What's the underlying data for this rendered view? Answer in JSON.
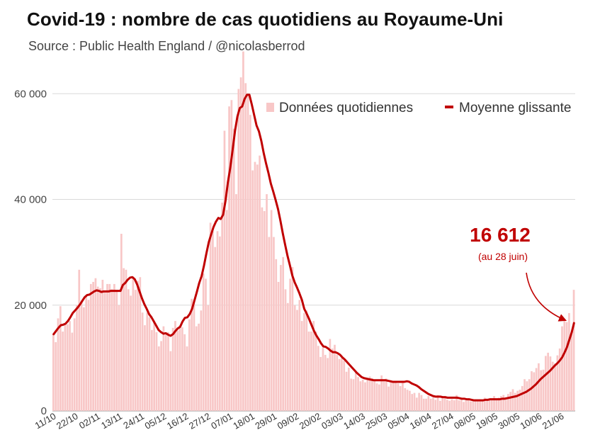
{
  "title": "Covid-19 : nombre de cas quotidiens au Royaume-Uni",
  "subtitle": "Source : Public Health England / @nicolasberrod",
  "colors": {
    "bars": "#f8c7c7",
    "line": "#c00000",
    "grid": "#d9d9d9",
    "annotation": "#c00000"
  },
  "chart_data": {
    "type": "bar",
    "ylim": [
      0,
      65000
    ],
    "y_ticks": [
      0,
      20000,
      40000,
      60000
    ],
    "y_tick_labels": [
      "0",
      "20 000",
      "40 000",
      "60 000"
    ],
    "x_tick_labels": [
      "11/10",
      "22/10",
      "02/11",
      "13/11",
      "24/11",
      "05/12",
      "16/12",
      "27/12",
      "07/01",
      "18/01",
      "29/01",
      "09/02",
      "20/02",
      "03/03",
      "14/03",
      "25/03",
      "05/04",
      "16/04",
      "27/04",
      "08/05",
      "19/05",
      "30/05",
      "10/06",
      "21/06"
    ],
    "grid": true,
    "legend_position": "top-right",
    "series": [
      {
        "name": "Données quotidiennes",
        "kind": "bar",
        "values": [
          14500,
          13000,
          17500,
          19800,
          15000,
          16300,
          16400,
          17000,
          14800,
          17500,
          20000,
          26700,
          20900,
          19600,
          21800,
          21000,
          24000,
          24400,
          25100,
          23500,
          23200,
          24800,
          22500,
          24000,
          24000,
          23000,
          24000,
          22900,
          20000,
          33500,
          27000,
          26700,
          23000,
          21800,
          25400,
          22900,
          24600,
          25300,
          18600,
          16200,
          18600,
          17700,
          15300,
          16800,
          14900,
          12200,
          13200,
          16000,
          14800,
          14900,
          11300,
          15700,
          17000,
          15200,
          16200,
          15800,
          14500,
          12200,
          17300,
          21200,
          21000,
          16000,
          16500,
          19000,
          26000,
          25000,
          20000,
          35600,
          34000,
          31000,
          34000,
          33000,
          39400,
          53000,
          38000,
          57600,
          58800,
          53400,
          41000,
          60900,
          63100,
          68000,
          62000,
          59900,
          56000,
          45500,
          47100,
          46600,
          48300,
          38500,
          37800,
          41000,
          32900,
          38000,
          32900,
          28700,
          24400,
          27600,
          29100,
          23000,
          20400,
          25000,
          27200,
          20000,
          19100,
          21000,
          17000,
          18500,
          19000,
          15000,
          15000,
          17000,
          15000,
          12300,
          10200,
          12000,
          10600,
          10000,
          13600,
          11800,
          12500,
          10600,
          9800,
          10000,
          9500,
          7400,
          8200,
          6100,
          6000,
          7500,
          6400,
          5600,
          5900,
          5400,
          6000,
          6500,
          6200,
          5800,
          5200,
          5000,
          6700,
          5600,
          6100,
          4600,
          5800,
          5500,
          5400,
          5200,
          4700,
          5700,
          4300,
          4000,
          3800,
          3200,
          3400,
          2500,
          3400,
          3000,
          2300,
          2300,
          2800,
          2300,
          2500,
          2100,
          3000,
          1900,
          2600,
          2500,
          2100,
          1900,
          2200,
          2000,
          3000,
          2000,
          2300,
          1700,
          2000,
          2200,
          1800,
          2100,
          2200,
          1900,
          2200,
          2000,
          2500,
          2100,
          2400,
          2200,
          2800,
          2100,
          2500,
          2800,
          3000,
          2600,
          3200,
          3600,
          4100,
          3400,
          3800,
          4000,
          4700,
          6000,
          5600,
          6000,
          7500,
          7300,
          8100,
          9000,
          7700,
          7800,
          10400,
          11000,
          10300,
          9300,
          9000,
          10500,
          11800,
          16000,
          17000,
          16800,
          18500,
          14400,
          22900
        ]
      },
      {
        "name": "Moyenne glissante",
        "kind": "line",
        "values": [
          14500,
          15100,
          15700,
          16200,
          16300,
          16500,
          17000,
          17700,
          18500,
          19000,
          19500,
          20100,
          20800,
          21500,
          21900,
          22000,
          22300,
          22600,
          22800,
          22700,
          22500,
          22600,
          22600,
          22600,
          22700,
          22700,
          22700,
          22700,
          22700,
          23800,
          24200,
          24800,
          25200,
          25300,
          24900,
          23900,
          22600,
          21300,
          20200,
          19300,
          18300,
          17700,
          16900,
          16100,
          15300,
          14900,
          14600,
          14700,
          14400,
          14200,
          14500,
          15100,
          15600,
          15900,
          16900,
          17600,
          17700,
          18300,
          19300,
          20900,
          22500,
          24200,
          25500,
          27500,
          29800,
          31900,
          33400,
          34800,
          35800,
          36500,
          36300,
          37100,
          39700,
          43200,
          46000,
          49400,
          53000,
          55700,
          57300,
          57600,
          59000,
          59800,
          59800,
          58000,
          56000,
          54000,
          52900,
          51100,
          48800,
          46800,
          45000,
          43000,
          41500,
          39900,
          38200,
          36000,
          33600,
          31400,
          29300,
          27500,
          25600,
          24300,
          23300,
          22200,
          21000,
          19300,
          18400,
          17400,
          16300,
          15200,
          14300,
          13600,
          12800,
          12200,
          12100,
          11800,
          11400,
          11100,
          11100,
          10900,
          10600,
          10100,
          9700,
          9200,
          8700,
          8200,
          7700,
          7200,
          6800,
          6400,
          6200,
          6100,
          6000,
          5900,
          5800,
          5800,
          5800,
          5800,
          5800,
          5800,
          5700,
          5600,
          5500,
          5500,
          5500,
          5500,
          5500,
          5500,
          5600,
          5500,
          5200,
          5000,
          4800,
          4500,
          4100,
          3800,
          3500,
          3200,
          3000,
          2800,
          2700,
          2700,
          2700,
          2600,
          2600,
          2500,
          2500,
          2500,
          2500,
          2500,
          2400,
          2300,
          2300,
          2200,
          2200,
          2100,
          2000,
          2000,
          2000,
          2000,
          2000,
          2100,
          2100,
          2200,
          2200,
          2200,
          2200,
          2200,
          2300,
          2300,
          2400,
          2500,
          2600,
          2700,
          2800,
          3000,
          3200,
          3400,
          3600,
          3900,
          4200,
          4600,
          5000,
          5500,
          6000,
          6400,
          6800,
          7200,
          7600,
          8100,
          8600,
          9000,
          9500,
          10100,
          11000,
          12000,
          13400,
          14800,
          16612
        ]
      }
    ],
    "annotation": {
      "value": "16 612",
      "note": "(au 28 juin)"
    }
  }
}
